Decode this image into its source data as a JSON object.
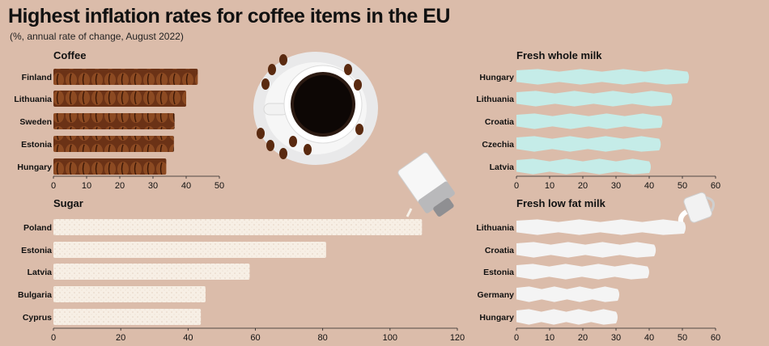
{
  "header": {
    "title": "Highest inflation rates for coffee items in the EU",
    "subtitle": "(%, annual rate of change, August 2022)"
  },
  "colors": {
    "background": "#dbbcaa",
    "coffee": "#7a3d1c",
    "sugar": "#f5ece1",
    "whole_milk": "#c5ece8",
    "lowfat_milk": "#f4f4f4"
  },
  "chart_data": [
    {
      "type": "bar",
      "title": "Coffee",
      "categories": [
        "Finland",
        "Lithuania",
        "Sweden",
        "Estonia",
        "Hungary"
      ],
      "values": [
        43.5,
        40,
        36.5,
        36.3,
        34
      ],
      "xlim": [
        0,
        50
      ],
      "ticks": [
        0,
        10,
        20,
        30,
        40,
        50
      ],
      "orientation": "horizontal"
    },
    {
      "type": "bar",
      "title": "Sugar",
      "categories": [
        "Poland",
        "Estonia",
        "Latvia",
        "Bulgaria",
        "Cyprus"
      ],
      "values": [
        109.5,
        81,
        58.3,
        45.2,
        43.8
      ],
      "xlim": [
        0,
        120
      ],
      "ticks": [
        0,
        20,
        40,
        60,
        80,
        100,
        120
      ],
      "orientation": "horizontal"
    },
    {
      "type": "bar",
      "title": "Fresh whole milk",
      "categories": [
        "Hungary",
        "Lithuania",
        "Croatia",
        "Czechia",
        "Latvia"
      ],
      "values": [
        51.5,
        46.5,
        43.5,
        43,
        40
      ],
      "xlim": [
        0,
        60
      ],
      "ticks": [
        0,
        10,
        20,
        30,
        40,
        50,
        60
      ],
      "orientation": "horizontal"
    },
    {
      "type": "bar",
      "title": "Fresh low fat milk",
      "categories": [
        "Lithuania",
        "Croatia",
        "Estonia",
        "Germany",
        "Hungary"
      ],
      "values": [
        50.5,
        41.5,
        39.5,
        30.5,
        30
      ],
      "xlim": [
        0,
        60
      ],
      "ticks": [
        0,
        10,
        20,
        30,
        40,
        50,
        60
      ],
      "orientation": "horizontal"
    }
  ]
}
